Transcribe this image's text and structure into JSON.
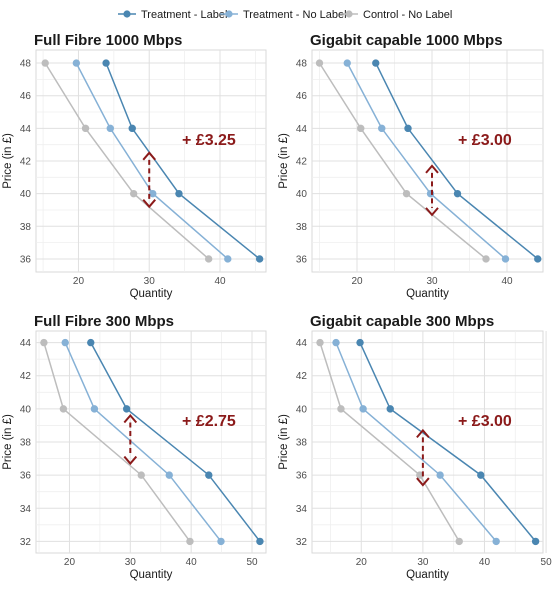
{
  "legend": [
    {
      "label": "Treatment - Label",
      "color": "#4a86b1"
    },
    {
      "label": "Treatment - No Label",
      "color": "#86b1d6"
    },
    {
      "label": "Control - No Label",
      "color": "#bdbdbd"
    }
  ],
  "chart_data": [
    {
      "type": "line",
      "title": "Full Fibre 1000 Mbps",
      "xlabel": "Quantity",
      "ylabel": "Price (in £)",
      "xlim": [
        14,
        46.5
      ],
      "ylim": [
        35.2,
        48.8
      ],
      "xticks": [
        20,
        30,
        40
      ],
      "yticks": [
        36,
        38,
        40,
        42,
        44,
        46,
        48
      ],
      "grid": true,
      "legend": "top",
      "series": [
        {
          "name": "Treatment - Label",
          "color": "#4a86b1",
          "x": [
            23.9,
            27.6,
            34.2,
            45.6
          ],
          "y": [
            48,
            44,
            40,
            36
          ]
        },
        {
          "name": "Treatment - No Label",
          "color": "#86b1d6",
          "x": [
            19.7,
            24.5,
            30.5,
            41.1
          ],
          "y": [
            48,
            44,
            40,
            36
          ]
        },
        {
          "name": "Control - No Label",
          "color": "#bdbdbd",
          "x": [
            15.3,
            21.0,
            27.8,
            38.4
          ],
          "y": [
            48,
            44,
            40,
            36
          ]
        }
      ],
      "annotation": {
        "text": "+ £3.25",
        "x": 30,
        "y_from": 42.5,
        "y_to": 39.2
      }
    },
    {
      "type": "line",
      "title": "Gigabit capable 1000 Mbps",
      "xlabel": "Quantity",
      "ylabel": "Price (in £)",
      "xlim": [
        14,
        44.8
      ],
      "ylim": [
        35.2,
        48.8
      ],
      "xticks": [
        20,
        30,
        40
      ],
      "yticks": [
        36,
        38,
        40,
        42,
        44,
        46,
        48
      ],
      "grid": true,
      "legend": "top",
      "series": [
        {
          "name": "Treatment - Label",
          "color": "#4a86b1",
          "x": [
            22.5,
            26.8,
            33.4,
            44.1
          ],
          "y": [
            48,
            44,
            40,
            36
          ]
        },
        {
          "name": "Treatment - No Label",
          "color": "#86b1d6",
          "x": [
            18.7,
            23.3,
            29.8,
            39.8
          ],
          "y": [
            48,
            44,
            40,
            36
          ]
        },
        {
          "name": "Control - No Label",
          "color": "#bdbdbd",
          "x": [
            15.0,
            20.5,
            26.6,
            37.2
          ],
          "y": [
            48,
            44,
            40,
            36
          ]
        }
      ],
      "annotation": {
        "text": "+ £3.00",
        "x": 30,
        "y_from": 41.7,
        "y_to": 38.7
      }
    },
    {
      "type": "line",
      "title": "Full Fibre 300 Mbps",
      "xlabel": "Quantity",
      "ylabel": "Price (in £)",
      "xlim": [
        14.5,
        52.3
      ],
      "ylim": [
        31.3,
        44.7
      ],
      "xticks": [
        20,
        30,
        40,
        50
      ],
      "yticks": [
        32,
        34,
        36,
        38,
        40,
        42,
        44
      ],
      "grid": true,
      "legend": "top",
      "series": [
        {
          "name": "Treatment - Label",
          "color": "#4a86b1",
          "x": [
            23.5,
            29.4,
            42.9,
            51.3
          ],
          "y": [
            44,
            40,
            36,
            32
          ]
        },
        {
          "name": "Treatment - No Label",
          "color": "#86b1d6",
          "x": [
            19.3,
            24.1,
            36.4,
            44.9
          ],
          "y": [
            44,
            40,
            36,
            32
          ]
        },
        {
          "name": "Control - No Label",
          "color": "#bdbdbd",
          "x": [
            15.8,
            19.0,
            31.8,
            39.8
          ],
          "y": [
            44,
            40,
            36,
            32
          ]
        }
      ],
      "annotation": {
        "text": "+ £2.75",
        "x": 30,
        "y_from": 39.6,
        "y_to": 36.7
      }
    },
    {
      "type": "line",
      "title": "Gigabit capable 300 Mbps",
      "xlabel": "Quantity",
      "ylabel": "Price (in £)",
      "xlim": [
        12,
        49.5
      ],
      "ylim": [
        31.3,
        44.7
      ],
      "xticks": [
        20,
        30,
        40,
        50
      ],
      "yticks": [
        32,
        34,
        36,
        38,
        40,
        42,
        44
      ],
      "grid": true,
      "legend": "top",
      "series": [
        {
          "name": "Treatment - Label",
          "color": "#4a86b1",
          "x": [
            19.8,
            24.7,
            39.4,
            48.3
          ],
          "y": [
            44,
            40,
            36,
            32
          ]
        },
        {
          "name": "Treatment - No Label",
          "color": "#86b1d6",
          "x": [
            15.9,
            20.3,
            32.8,
            41.9
          ],
          "y": [
            44,
            40,
            36,
            32
          ]
        },
        {
          "name": "Control - No Label",
          "color": "#bdbdbd",
          "x": [
            13.3,
            16.7,
            29.5,
            35.9
          ],
          "y": [
            44,
            40,
            36,
            32
          ]
        }
      ],
      "annotation": {
        "text": "+ £3.00",
        "x": 30,
        "y_from": 38.7,
        "y_to": 35.4
      }
    }
  ]
}
